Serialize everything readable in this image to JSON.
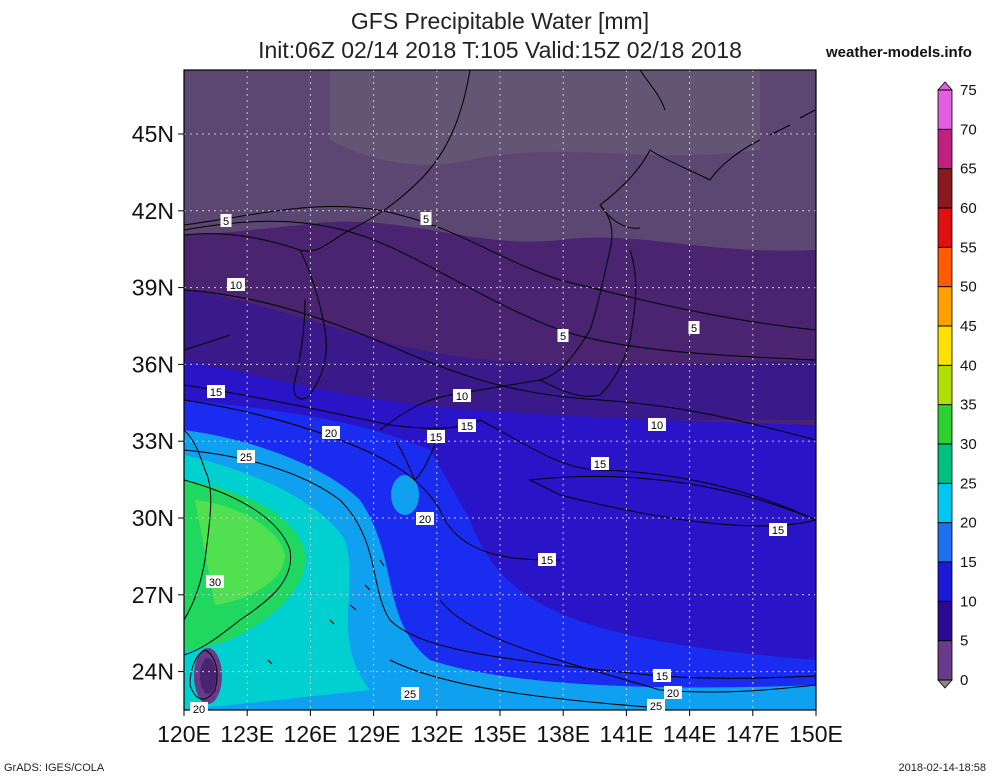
{
  "header": {
    "title_line1": "GFS Precipitable Water [mm]",
    "title_line2": "Init:06Z 02/14 2018 T:105 Valid:15Z 02/18 2018",
    "site": "weather-models.info"
  },
  "map": {
    "projection": "lat-lon",
    "lon_range": [
      120,
      150
    ],
    "lat_range": [
      22.5,
      47.5
    ],
    "lat_ticks": [
      "45N",
      "42N",
      "39N",
      "36N",
      "33N",
      "30N",
      "27N",
      "24N"
    ],
    "lon_ticks": [
      "120E",
      "123E",
      "126E",
      "129E",
      "132E",
      "135E",
      "138E",
      "141E",
      "144E",
      "147E",
      "150E"
    ],
    "gridlines": "dotted",
    "contour_labels": [
      "5",
      "5",
      "10",
      "5",
      "5",
      "15",
      "10",
      "10",
      "20",
      "15",
      "15",
      "25",
      "15",
      "20",
      "30",
      "15",
      "15",
      "15",
      "20",
      "25",
      "25",
      "20"
    ]
  },
  "colorbar": {
    "labels": [
      "75",
      "70",
      "65",
      "60",
      "55",
      "50",
      "45",
      "40",
      "35",
      "30",
      "25",
      "20",
      "15",
      "10",
      "5",
      "0"
    ],
    "colors": [
      "#e060e0",
      "#c02080",
      "#8a1a20",
      "#e01010",
      "#ff5a00",
      "#ffa000",
      "#ffe000",
      "#b0e000",
      "#30d030",
      "#00c080",
      "#00c8f0",
      "#1e70f0",
      "#1a1ad8",
      "#2a0a90",
      "#6a3a8a",
      "#888888"
    ]
  },
  "footer": {
    "left": "GrADS: IGES/COLA",
    "right": "2018-02-14-18:58"
  }
}
